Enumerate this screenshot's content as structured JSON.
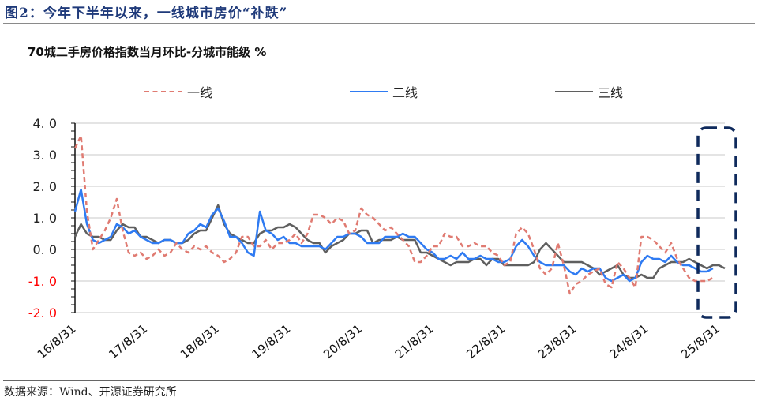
{
  "figure": {
    "title": "图2：今年下半年以来，一线城市房价“补跌”",
    "subtitle": "70城二手房价格指数当月环比-分城市能级   %",
    "source": "数据来源：Wind、开源证券研究所"
  },
  "colors": {
    "tier1": "#e07b72",
    "tier2": "#2f7bf2",
    "tier3": "#5f5f5f",
    "highlight_box": "#0f2a5c",
    "negative_tick": "#ff0000",
    "title": "#1f3a7a"
  },
  "legend": [
    {
      "key": "tier1",
      "label": "一线",
      "style": "dashed"
    },
    {
      "key": "tier2",
      "label": "二线",
      "style": "solid"
    },
    {
      "key": "tier3",
      "label": "三线",
      "style": "solid"
    }
  ],
  "chart_data": {
    "type": "line",
    "title": "70城二手房价格指数当月环比-分城市能级",
    "ylabel": "%",
    "xlabel": "",
    "ylim": [
      -2.0,
      4.0
    ],
    "yticks": [
      "4.0",
      "3.0",
      "2.0",
      "1.0",
      "0.0",
      "-1.0",
      "-2.0"
    ],
    "xtick_labels": [
      "16/8/31",
      "17/8/31",
      "18/8/31",
      "19/8/31",
      "20/8/31",
      "21/8/31",
      "22/8/31",
      "23/8/31",
      "24/8/31",
      "25/8/31"
    ],
    "grid": "horizontal",
    "legend_position": "top",
    "x_start": "2016-08",
    "frequency": "monthly",
    "annotation": "dashed rounded box highlighting latest months (2025 H2)",
    "series": [
      {
        "name": "一线",
        "values": [
          3.2,
          3.6,
          1.2,
          0.0,
          0.3,
          0.6,
          1.0,
          1.6,
          0.6,
          -0.1,
          -0.2,
          -0.1,
          -0.3,
          -0.2,
          0.0,
          -0.2,
          -0.1,
          0.2,
          0.0,
          -0.1,
          0.1,
          0.0,
          0.1,
          -0.1,
          -0.2,
          -0.4,
          -0.3,
          -0.1,
          0.4,
          0.4,
          0.1,
          0.1,
          0.3,
          0.0,
          0.2,
          0.2,
          0.3,
          0.5,
          0.2,
          0.5,
          1.1,
          1.1,
          1.0,
          0.8,
          1.0,
          0.9,
          0.5,
          0.6,
          1.3,
          1.1,
          1.0,
          0.8,
          0.6,
          0.7,
          0.5,
          0.3,
          0.1,
          -0.4,
          -0.4,
          -0.2,
          0.1,
          0.1,
          0.5,
          0.4,
          0.4,
          0.1,
          0.1,
          0.2,
          0.1,
          0.1,
          -0.1,
          -0.2,
          -0.5,
          -0.4,
          0.5,
          0.7,
          0.5,
          0.0,
          -0.6,
          -0.8,
          -0.6,
          0.2,
          -0.5,
          -1.4,
          -1.1,
          -1.0,
          -0.8,
          -0.7,
          -0.6,
          -1.1,
          -1.2,
          -0.4,
          -0.6,
          -0.9,
          -1.2,
          0.4,
          0.4,
          0.3,
          0.1,
          -0.1,
          0.2,
          -0.3,
          -0.6,
          -0.9,
          -1.0,
          -1.0,
          -1.0,
          -0.9
        ],
        "style": "dashed"
      },
      {
        "name": "二线",
        "values": [
          1.2,
          1.9,
          0.8,
          0.3,
          0.2,
          0.3,
          0.4,
          0.8,
          0.7,
          0.5,
          0.6,
          0.4,
          0.3,
          0.2,
          0.2,
          0.3,
          0.3,
          0.2,
          0.2,
          0.5,
          0.6,
          0.8,
          0.7,
          1.1,
          1.3,
          0.9,
          0.4,
          0.4,
          0.2,
          -0.1,
          -0.2,
          1.2,
          0.6,
          0.5,
          0.3,
          0.4,
          0.2,
          0.2,
          0.1,
          0.1,
          0.1,
          0.1,
          0.0,
          0.2,
          0.4,
          0.4,
          0.5,
          0.5,
          0.4,
          0.2,
          0.2,
          0.2,
          0.4,
          0.4,
          0.4,
          0.5,
          0.4,
          0.4,
          0.2,
          0.0,
          -0.1,
          -0.3,
          -0.3,
          -0.2,
          -0.3,
          -0.1,
          -0.3,
          -0.3,
          -0.2,
          -0.3,
          -0.3,
          -0.4,
          -0.4,
          -0.3,
          0.1,
          0.3,
          0.1,
          -0.2,
          -0.4,
          -0.5,
          -0.5,
          -0.5,
          -0.5,
          -0.7,
          -0.8,
          -0.6,
          -0.7,
          -0.6,
          -0.6,
          -0.9,
          -1.0,
          -0.9,
          -0.8,
          -1.0,
          -0.9,
          -0.4,
          -0.2,
          -0.3,
          -0.3,
          -0.4,
          -0.2,
          -0.4,
          -0.5,
          -0.5,
          -0.6,
          -0.7,
          -0.7,
          -0.6
        ],
        "style": "solid"
      },
      {
        "name": "三线",
        "values": [
          0.4,
          0.8,
          0.5,
          0.4,
          0.4,
          0.3,
          0.3,
          0.6,
          0.8,
          0.7,
          0.7,
          0.4,
          0.4,
          0.3,
          0.2,
          0.3,
          0.3,
          0.2,
          0.2,
          0.3,
          0.5,
          0.6,
          0.6,
          1.0,
          1.4,
          0.8,
          0.5,
          0.4,
          0.3,
          0.2,
          0.2,
          0.5,
          0.6,
          0.6,
          0.7,
          0.7,
          0.8,
          0.7,
          0.5,
          0.3,
          0.2,
          0.2,
          -0.1,
          0.1,
          0.2,
          0.3,
          0.5,
          0.5,
          0.6,
          0.6,
          0.2,
          0.3,
          0.3,
          0.3,
          0.4,
          0.3,
          0.3,
          0.3,
          -0.1,
          -0.1,
          -0.2,
          -0.3,
          -0.4,
          -0.5,
          -0.4,
          -0.4,
          -0.4,
          -0.3,
          -0.3,
          -0.5,
          -0.3,
          -0.3,
          -0.5,
          -0.5,
          -0.5,
          -0.5,
          -0.5,
          -0.4,
          0.0,
          0.2,
          0.0,
          -0.2,
          -0.4,
          -0.4,
          -0.4,
          -0.4,
          -0.5,
          -0.6,
          -0.8,
          -0.7,
          -0.6,
          -0.5,
          -0.8,
          -0.9,
          -0.9,
          -0.8,
          -0.9,
          -0.9,
          -0.6,
          -0.5,
          -0.4,
          -0.4,
          -0.4,
          -0.3,
          -0.4,
          -0.5,
          -0.6,
          -0.5,
          -0.5,
          -0.6
        ],
        "style": "solid"
      }
    ]
  }
}
